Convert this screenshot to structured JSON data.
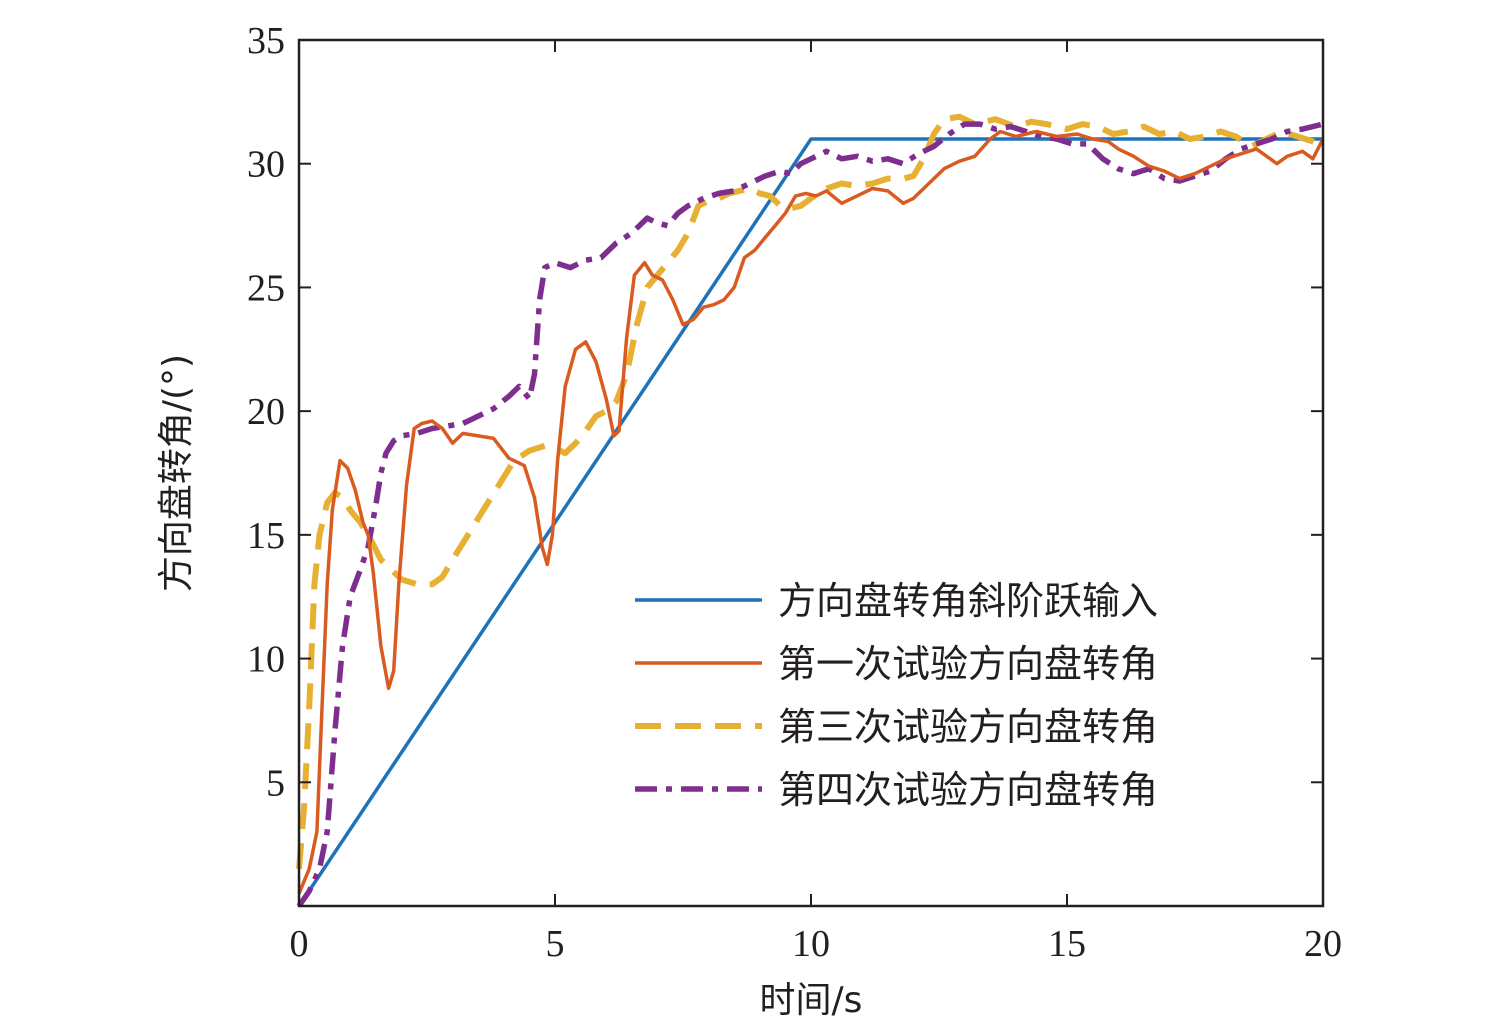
{
  "chart_data": {
    "type": "line",
    "xlabel": "时间/s",
    "ylabel": "方向盘转角/(°)",
    "xlim": [
      0,
      20
    ],
    "ylim": [
      0,
      35
    ],
    "xticks": [
      0,
      5,
      10,
      15,
      20
    ],
    "yticks": [
      5,
      10,
      15,
      20,
      25,
      30,
      35
    ],
    "grid": false,
    "legend_position": "bottom-right",
    "series": [
      {
        "name": "方向盘转角斜阶跃输入",
        "color": "#1f72b8",
        "dash": "solid",
        "points": [
          [
            0,
            0
          ],
          [
            10,
            31
          ],
          [
            20,
            31
          ]
        ]
      },
      {
        "name": "第一次试验方向盘转角",
        "color": "#d95b20",
        "dash": "solid",
        "points": [
          [
            0,
            0.5
          ],
          [
            0.2,
            1.5
          ],
          [
            0.35,
            3
          ],
          [
            0.45,
            8
          ],
          [
            0.55,
            13
          ],
          [
            0.65,
            16
          ],
          [
            0.8,
            18
          ],
          [
            0.95,
            17.7
          ],
          [
            1.1,
            16.8
          ],
          [
            1.25,
            15.5
          ],
          [
            1.35,
            15
          ],
          [
            1.45,
            13.5
          ],
          [
            1.6,
            10.5
          ],
          [
            1.75,
            8.8
          ],
          [
            1.85,
            9.5
          ],
          [
            1.95,
            13
          ],
          [
            2.1,
            17
          ],
          [
            2.25,
            19.3
          ],
          [
            2.4,
            19.5
          ],
          [
            2.6,
            19.6
          ],
          [
            2.8,
            19.3
          ],
          [
            3.0,
            18.7
          ],
          [
            3.2,
            19.1
          ],
          [
            3.5,
            19.0
          ],
          [
            3.8,
            18.9
          ],
          [
            4.1,
            18.1
          ],
          [
            4.4,
            17.8
          ],
          [
            4.6,
            16.5
          ],
          [
            4.75,
            14.5
          ],
          [
            4.85,
            13.8
          ],
          [
            4.95,
            15
          ],
          [
            5.05,
            18
          ],
          [
            5.2,
            21
          ],
          [
            5.4,
            22.5
          ],
          [
            5.6,
            22.8
          ],
          [
            5.8,
            22
          ],
          [
            6.0,
            20.5
          ],
          [
            6.15,
            19
          ],
          [
            6.25,
            19.2
          ],
          [
            6.4,
            23
          ],
          [
            6.55,
            25.5
          ],
          [
            6.75,
            26.0
          ],
          [
            6.9,
            25.5
          ],
          [
            7.1,
            25.3
          ],
          [
            7.3,
            24.5
          ],
          [
            7.5,
            23.5
          ],
          [
            7.7,
            23.7
          ],
          [
            7.9,
            24.2
          ],
          [
            8.1,
            24.3
          ],
          [
            8.3,
            24.5
          ],
          [
            8.5,
            25.0
          ],
          [
            8.7,
            26.2
          ],
          [
            8.9,
            26.5
          ],
          [
            9.1,
            27
          ],
          [
            9.3,
            27.5
          ],
          [
            9.5,
            28
          ],
          [
            9.7,
            28.7
          ],
          [
            9.9,
            28.8
          ],
          [
            10.1,
            28.7
          ],
          [
            10.3,
            28.9
          ],
          [
            10.6,
            28.4
          ],
          [
            10.9,
            28.7
          ],
          [
            11.2,
            29.0
          ],
          [
            11.5,
            28.9
          ],
          [
            11.8,
            28.4
          ],
          [
            12.0,
            28.6
          ],
          [
            12.3,
            29.2
          ],
          [
            12.6,
            29.8
          ],
          [
            12.9,
            30.1
          ],
          [
            13.2,
            30.3
          ],
          [
            13.5,
            31.0
          ],
          [
            13.7,
            31.3
          ],
          [
            14.0,
            31.1
          ],
          [
            14.4,
            31.3
          ],
          [
            14.8,
            31.1
          ],
          [
            15.2,
            31.2
          ],
          [
            15.5,
            31.0
          ],
          [
            15.8,
            30.9
          ],
          [
            16.0,
            30.6
          ],
          [
            16.3,
            30.3
          ],
          [
            16.6,
            29.9
          ],
          [
            16.9,
            29.7
          ],
          [
            17.2,
            29.4
          ],
          [
            17.5,
            29.6
          ],
          [
            17.8,
            29.9
          ],
          [
            18.1,
            30.2
          ],
          [
            18.4,
            30.4
          ],
          [
            18.7,
            30.6
          ],
          [
            18.9,
            30.3
          ],
          [
            19.1,
            30.0
          ],
          [
            19.3,
            30.3
          ],
          [
            19.6,
            30.5
          ],
          [
            19.8,
            30.2
          ],
          [
            20,
            31.0
          ]
        ]
      },
      {
        "name": "第三次试验方向盘转角",
        "color": "#e8b032",
        "dash": "dashed",
        "points": [
          [
            0,
            1.5
          ],
          [
            0.1,
            4
          ],
          [
            0.2,
            8
          ],
          [
            0.3,
            13
          ],
          [
            0.4,
            15
          ],
          [
            0.55,
            16.3
          ],
          [
            0.7,
            16.7
          ],
          [
            0.85,
            16.5
          ],
          [
            1.0,
            16.0
          ],
          [
            1.2,
            15.5
          ],
          [
            1.4,
            14.8
          ],
          [
            1.6,
            14.0
          ],
          [
            1.8,
            13.6
          ],
          [
            2.0,
            13.2
          ],
          [
            2.3,
            13.0
          ],
          [
            2.6,
            13.0
          ],
          [
            2.8,
            13.3
          ],
          [
            3.0,
            14.0
          ],
          [
            3.3,
            15.0
          ],
          [
            3.6,
            16.0
          ],
          [
            3.9,
            17.0
          ],
          [
            4.2,
            18.0
          ],
          [
            4.5,
            18.4
          ],
          [
            4.8,
            18.6
          ],
          [
            5.0,
            18.5
          ],
          [
            5.2,
            18.3
          ],
          [
            5.4,
            18.7
          ],
          [
            5.6,
            19.2
          ],
          [
            5.8,
            19.8
          ],
          [
            6.0,
            20.0
          ],
          [
            6.2,
            20.4
          ],
          [
            6.4,
            21.5
          ],
          [
            6.6,
            23.5
          ],
          [
            6.8,
            25.0
          ],
          [
            7.0,
            25.5
          ],
          [
            7.2,
            26.0
          ],
          [
            7.4,
            26.5
          ],
          [
            7.6,
            27.2
          ],
          [
            7.8,
            28.3
          ],
          [
            8.0,
            28.5
          ],
          [
            8.2,
            28.6
          ],
          [
            8.4,
            28.8
          ],
          [
            8.6,
            28.9
          ],
          [
            8.8,
            29.0
          ],
          [
            9.0,
            28.8
          ],
          [
            9.2,
            28.7
          ],
          [
            9.4,
            28.3
          ],
          [
            9.6,
            28.2
          ],
          [
            9.8,
            28.3
          ],
          [
            10.0,
            28.6
          ],
          [
            10.3,
            29.0
          ],
          [
            10.6,
            29.2
          ],
          [
            10.9,
            29.1
          ],
          [
            11.2,
            29.2
          ],
          [
            11.5,
            29.4
          ],
          [
            11.8,
            29.4
          ],
          [
            12.0,
            29.5
          ],
          [
            12.2,
            30.2
          ],
          [
            12.4,
            31.2
          ],
          [
            12.6,
            31.8
          ],
          [
            12.9,
            31.9
          ],
          [
            13.2,
            31.6
          ],
          [
            13.6,
            31.8
          ],
          [
            14.0,
            31.5
          ],
          [
            14.3,
            31.7
          ],
          [
            14.6,
            31.6
          ],
          [
            15.0,
            31.4
          ],
          [
            15.3,
            31.6
          ],
          [
            15.6,
            31.5
          ],
          [
            15.9,
            31.2
          ],
          [
            16.2,
            31.3
          ],
          [
            16.5,
            31.5
          ],
          [
            16.8,
            31.2
          ],
          [
            17.1,
            31.3
          ],
          [
            17.4,
            31.0
          ],
          [
            17.7,
            31.1
          ],
          [
            18.0,
            31.3
          ],
          [
            18.3,
            31.1
          ],
          [
            18.6,
            30.7
          ],
          [
            18.9,
            31.0
          ],
          [
            19.2,
            31.3
          ],
          [
            19.5,
            31.1
          ],
          [
            19.8,
            30.9
          ],
          [
            20,
            30.7
          ]
        ]
      },
      {
        "name": "第四次试验方向盘转角",
        "color": "#7d2e8e",
        "dash": "dashdot",
        "points": [
          [
            0,
            0
          ],
          [
            0.2,
            0.6
          ],
          [
            0.4,
            1.5
          ],
          [
            0.55,
            3
          ],
          [
            0.7,
            7
          ],
          [
            0.85,
            10.5
          ],
          [
            1.0,
            12.5
          ],
          [
            1.2,
            13.6
          ],
          [
            1.35,
            14.5
          ],
          [
            1.5,
            16.2
          ],
          [
            1.6,
            17.5
          ],
          [
            1.7,
            18.3
          ],
          [
            1.85,
            18.8
          ],
          [
            2.0,
            19.0
          ],
          [
            2.3,
            19.1
          ],
          [
            2.6,
            19.3
          ],
          [
            2.9,
            19.4
          ],
          [
            3.2,
            19.5
          ],
          [
            3.5,
            19.8
          ],
          [
            3.8,
            20.1
          ],
          [
            4.1,
            20.6
          ],
          [
            4.3,
            21.0
          ],
          [
            4.5,
            20.5
          ],
          [
            4.6,
            21.5
          ],
          [
            4.7,
            24.5
          ],
          [
            4.8,
            25.8
          ],
          [
            5.0,
            26.0
          ],
          [
            5.3,
            25.8
          ],
          [
            5.6,
            26.1
          ],
          [
            5.9,
            26.2
          ],
          [
            6.2,
            26.8
          ],
          [
            6.5,
            27.2
          ],
          [
            6.8,
            27.8
          ],
          [
            7.0,
            27.6
          ],
          [
            7.2,
            27.5
          ],
          [
            7.4,
            28.0
          ],
          [
            7.6,
            28.3
          ],
          [
            7.9,
            28.6
          ],
          [
            8.2,
            28.8
          ],
          [
            8.5,
            28.9
          ],
          [
            8.8,
            29.2
          ],
          [
            9.1,
            29.5
          ],
          [
            9.4,
            29.7
          ],
          [
            9.6,
            29.6
          ],
          [
            9.8,
            30.0
          ],
          [
            10.0,
            30.2
          ],
          [
            10.3,
            30.5
          ],
          [
            10.6,
            30.2
          ],
          [
            10.9,
            30.3
          ],
          [
            11.2,
            30.1
          ],
          [
            11.5,
            30.2
          ],
          [
            11.8,
            30.0
          ],
          [
            12.1,
            30.4
          ],
          [
            12.4,
            30.7
          ],
          [
            12.7,
            31.2
          ],
          [
            13.0,
            31.6
          ],
          [
            13.3,
            31.6
          ],
          [
            13.6,
            31.4
          ],
          [
            13.9,
            31.5
          ],
          [
            14.2,
            31.3
          ],
          [
            14.5,
            31.1
          ],
          [
            14.8,
            31.0
          ],
          [
            15.1,
            30.8
          ],
          [
            15.4,
            30.8
          ],
          [
            15.7,
            30.2
          ],
          [
            16.0,
            29.8
          ],
          [
            16.3,
            29.6
          ],
          [
            16.6,
            29.8
          ],
          [
            16.9,
            29.4
          ],
          [
            17.2,
            29.3
          ],
          [
            17.5,
            29.5
          ],
          [
            17.8,
            29.7
          ],
          [
            18.1,
            30.2
          ],
          [
            18.4,
            30.6
          ],
          [
            18.7,
            30.8
          ],
          [
            19.0,
            31.0
          ],
          [
            19.3,
            31.3
          ],
          [
            19.6,
            31.4
          ],
          [
            20,
            31.6
          ]
        ]
      }
    ]
  }
}
